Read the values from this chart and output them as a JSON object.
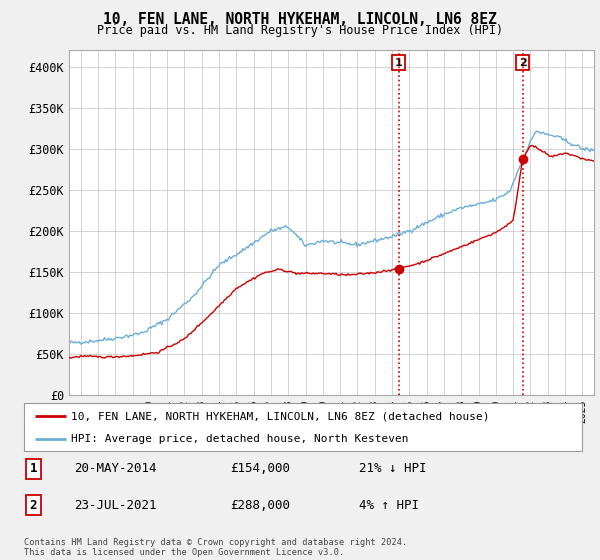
{
  "title": "10, FEN LANE, NORTH HYKEHAM, LINCOLN, LN6 8EZ",
  "subtitle": "Price paid vs. HM Land Registry's House Price Index (HPI)",
  "ylabel_ticks": [
    "£0",
    "£50K",
    "£100K",
    "£150K",
    "£200K",
    "£250K",
    "£300K",
    "£350K",
    "£400K"
  ],
  "ytick_values": [
    0,
    50000,
    100000,
    150000,
    200000,
    250000,
    300000,
    350000,
    400000
  ],
  "ylim": [
    0,
    420000
  ],
  "xlim_start": 1995.33,
  "xlim_end": 2025.67,
  "hpi_color": "#6baed6",
  "price_color": "#cc0000",
  "marker1_year": 2014.38,
  "marker1_price": 154000,
  "marker2_year": 2021.55,
  "marker2_price": 288000,
  "vline1_year": 2014.38,
  "vline2_year": 2021.55,
  "legend_label1": "10, FEN LANE, NORTH HYKEHAM, LINCOLN, LN6 8EZ (detached house)",
  "legend_label2": "HPI: Average price, detached house, North Kesteven",
  "note1_date": "20-MAY-2014",
  "note1_price": "£154,000",
  "note1_hpi": "21% ↓ HPI",
  "note2_date": "23-JUL-2021",
  "note2_price": "£288,000",
  "note2_hpi": "4% ↑ HPI",
  "footer": "Contains HM Land Registry data © Crown copyright and database right 2024.\nThis data is licensed under the Open Government Licence v3.0.",
  "background_color": "#f0f0f0",
  "plot_bg_color": "#ffffff",
  "grid_color": "#cccccc",
  "hpi_segments": [
    [
      1995.0,
      63000
    ],
    [
      1996.5,
      65000
    ],
    [
      1998.0,
      69000
    ],
    [
      1999.5,
      75000
    ],
    [
      2001.0,
      92000
    ],
    [
      2002.5,
      120000
    ],
    [
      2004.0,
      158000
    ],
    [
      2005.5,
      178000
    ],
    [
      2007.0,
      200000
    ],
    [
      2008.0,
      205000
    ],
    [
      2009.0,
      182000
    ],
    [
      2010.0,
      188000
    ],
    [
      2011.0,
      185000
    ],
    [
      2012.0,
      183000
    ],
    [
      2013.0,
      188000
    ],
    [
      2014.0,
      193000
    ],
    [
      2015.0,
      200000
    ],
    [
      2016.0,
      210000
    ],
    [
      2017.0,
      220000
    ],
    [
      2018.0,
      228000
    ],
    [
      2019.0,
      232000
    ],
    [
      2020.0,
      238000
    ],
    [
      2020.8,
      248000
    ],
    [
      2021.5,
      285000
    ],
    [
      2022.3,
      322000
    ],
    [
      2022.8,
      318000
    ],
    [
      2023.5,
      315000
    ],
    [
      2024.2,
      308000
    ],
    [
      2025.0,
      300000
    ],
    [
      2025.67,
      298000
    ]
  ],
  "price_segments": [
    [
      1995.0,
      44000
    ],
    [
      1996.0,
      47000
    ],
    [
      1997.5,
      46000
    ],
    [
      1999.0,
      47500
    ],
    [
      2000.5,
      52000
    ],
    [
      2002.0,
      68000
    ],
    [
      2003.5,
      98000
    ],
    [
      2005.0,
      130000
    ],
    [
      2006.5,
      148000
    ],
    [
      2007.5,
      153000
    ],
    [
      2008.5,
      148000
    ],
    [
      2010.0,
      148000
    ],
    [
      2011.5,
      146000
    ],
    [
      2013.0,
      149000
    ],
    [
      2014.38,
      154000
    ],
    [
      2015.5,
      160000
    ],
    [
      2017.0,
      172000
    ],
    [
      2018.5,
      185000
    ],
    [
      2020.0,
      198000
    ],
    [
      2021.0,
      212000
    ],
    [
      2021.55,
      288000
    ],
    [
      2022.0,
      305000
    ],
    [
      2022.6,
      298000
    ],
    [
      2023.2,
      290000
    ],
    [
      2024.0,
      295000
    ],
    [
      2025.0,
      288000
    ],
    [
      2025.67,
      285000
    ]
  ],
  "hpi_noise_std": 1200,
  "price_noise_std": 600,
  "random_seed": 42
}
